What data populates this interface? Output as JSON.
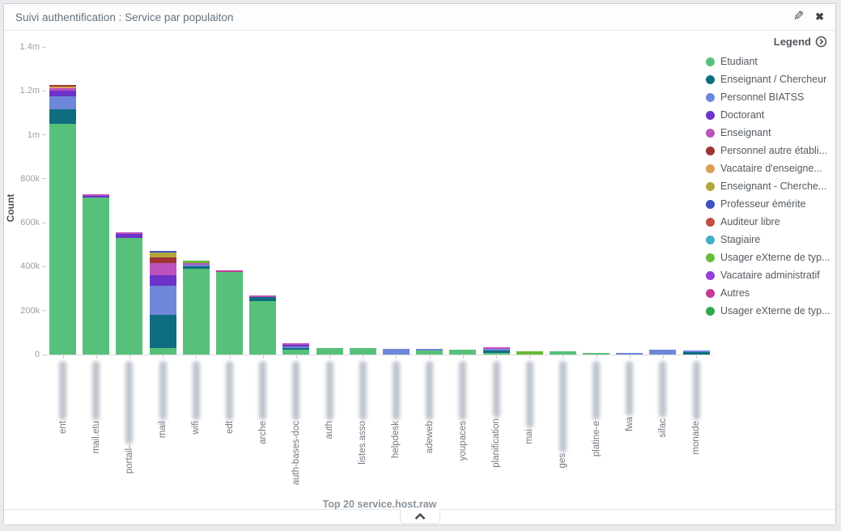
{
  "panel": {
    "title": "Suivi authentification : Service par populaiton",
    "edit_icon": "pencil",
    "close_icon": "x",
    "collapse_icon": "chevron-up"
  },
  "legend": {
    "header": "Legend",
    "items": [
      {
        "label": "Etudiant",
        "color": "#57c17b"
      },
      {
        "label": "Enseignant / Chercheur",
        "color": "#0e6e7f"
      },
      {
        "label": "Personnel BIATSS",
        "color": "#6f87d8"
      },
      {
        "label": "Doctorant",
        "color": "#6d33c9"
      },
      {
        "label": "Enseignant",
        "color": "#bc52bc"
      },
      {
        "label": "Personnel autre établi...",
        "color": "#9e3533"
      },
      {
        "label": "Vacataire d'enseigne...",
        "color": "#dca054"
      },
      {
        "label": "Enseignant - Cherche...",
        "color": "#b3a73c"
      },
      {
        "label": "Professeur émérite",
        "color": "#3f51c1"
      },
      {
        "label": "Auditeur libre",
        "color": "#c0503f"
      },
      {
        "label": "Stagiaire",
        "color": "#3fb0c4"
      },
      {
        "label": "Usager eXterne de typ...",
        "color": "#68bb35"
      },
      {
        "label": "Vacataire administratif",
        "color": "#9440d5"
      },
      {
        "label": "Autres",
        "color": "#c23a98"
      },
      {
        "label": "Usager eXterne de typ...",
        "color": "#2fa94c"
      }
    ]
  },
  "chart_data": {
    "type": "bar",
    "stacked": true,
    "ylabel": "Count",
    "xlabel": "Top 20 service.host.raw",
    "ymax": 1400000,
    "yticks": [
      {
        "label": "0",
        "value": 0
      },
      {
        "label": "200k",
        "value": 200000
      },
      {
        "label": "400k",
        "value": 400000
      },
      {
        "label": "600k",
        "value": 600000
      },
      {
        "label": "800k",
        "value": 800000
      },
      {
        "label": "1m",
        "value": 1000000
      },
      {
        "label": "1.2m",
        "value": 1200000
      },
      {
        "label": "1.4m",
        "value": 1400000
      }
    ],
    "categories": [
      {
        "label": "ent",
        "blur_len": 73
      },
      {
        "label": "mail.etu",
        "blur_len": 73
      },
      {
        "label": "portail-",
        "blur_len": 103
      },
      {
        "label": "mail",
        "blur_len": 73
      },
      {
        "label": "wifi",
        "blur_len": 73
      },
      {
        "label": "edt",
        "blur_len": 73
      },
      {
        "label": "arche",
        "blur_len": 73
      },
      {
        "label": "auth-bases-doc",
        "blur_len": 73
      },
      {
        "label": "auth",
        "blur_len": 73
      },
      {
        "label": "listes.asso",
        "blur_len": 73
      },
      {
        "label": "helpdesk",
        "blur_len": 73
      },
      {
        "label": "adeweb",
        "blur_len": 73
      },
      {
        "label": "youpaces",
        "blur_len": 73
      },
      {
        "label": "planification",
        "blur_len": 70
      },
      {
        "label": "mai",
        "blur_len": 83
      },
      {
        "label": "ges",
        "blur_len": 113
      },
      {
        "label": "platine-e",
        "blur_len": 73
      },
      {
        "label": "fwa",
        "blur_len": 68
      },
      {
        "label": "sifac",
        "blur_len": 70
      },
      {
        "label": "monade",
        "blur_len": 73
      }
    ],
    "bars": [
      {
        "segments": [
          {
            "i": 0,
            "v": 1050000
          },
          {
            "i": 1,
            "v": 68000
          },
          {
            "i": 2,
            "v": 56000
          },
          {
            "i": 3,
            "v": 26000
          },
          {
            "i": 4,
            "v": 11000
          },
          {
            "i": 6,
            "v": 8000
          },
          {
            "i": 5,
            "v": 8000
          }
        ]
      },
      {
        "segments": [
          {
            "i": 0,
            "v": 715000
          },
          {
            "i": 3,
            "v": 5000
          },
          {
            "i": 4,
            "v": 4000
          }
        ]
      },
      {
        "segments": [
          {
            "i": 0,
            "v": 530000
          },
          {
            "i": 3,
            "v": 18000
          },
          {
            "i": 4,
            "v": 3000
          }
        ]
      },
      {
        "segments": [
          {
            "i": 0,
            "v": 30000
          },
          {
            "i": 1,
            "v": 150000
          },
          {
            "i": 2,
            "v": 133000
          },
          {
            "i": 3,
            "v": 50000
          },
          {
            "i": 4,
            "v": 52000
          },
          {
            "i": 5,
            "v": 26000
          },
          {
            "i": 7,
            "v": 23000
          },
          {
            "i": 8,
            "v": 8000
          }
        ]
      },
      {
        "segments": [
          {
            "i": 0,
            "v": 392000
          },
          {
            "i": 1,
            "v": 8000
          },
          {
            "i": 2,
            "v": 6000
          },
          {
            "i": 4,
            "v": 7000
          },
          {
            "i": 11,
            "v": 12000
          }
        ]
      },
      {
        "segments": [
          {
            "i": 0,
            "v": 375000
          },
          {
            "i": 13,
            "v": 2000
          }
        ]
      },
      {
        "segments": [
          {
            "i": 0,
            "v": 242000
          },
          {
            "i": 1,
            "v": 20000
          },
          {
            "i": 4,
            "v": 6000
          }
        ]
      },
      {
        "segments": [
          {
            "i": 0,
            "v": 22000
          },
          {
            "i": 1,
            "v": 5000
          },
          {
            "i": 2,
            "v": 6000
          },
          {
            "i": 3,
            "v": 5000
          },
          {
            "i": 4,
            "v": 4000
          }
        ]
      },
      {
        "segments": [
          {
            "i": 0,
            "v": 30000
          }
        ]
      },
      {
        "segments": [
          {
            "i": 0,
            "v": 30000
          }
        ]
      },
      {
        "segments": [
          {
            "i": 2,
            "v": 26000
          }
        ]
      },
      {
        "segments": [
          {
            "i": 0,
            "v": 20000
          },
          {
            "i": 2,
            "v": 3000
          }
        ]
      },
      {
        "segments": [
          {
            "i": 0,
            "v": 24000
          }
        ]
      },
      {
        "segments": [
          {
            "i": 0,
            "v": 2000
          },
          {
            "i": 1,
            "v": 10000
          },
          {
            "i": 2,
            "v": 3000
          },
          {
            "i": 4,
            "v": 2000
          }
        ]
      },
      {
        "segments": [
          {
            "i": 11,
            "v": 16000
          }
        ]
      },
      {
        "segments": [
          {
            "i": 0,
            "v": 14000
          }
        ]
      },
      {
        "segments": [
          {
            "i": 0,
            "v": 7000
          }
        ]
      },
      {
        "segments": [
          {
            "i": 2,
            "v": 6000
          }
        ]
      },
      {
        "segments": [
          {
            "i": 2,
            "v": 24000
          }
        ]
      },
      {
        "segments": [
          {
            "i": 1,
            "v": 10000
          },
          {
            "i": 2,
            "v": 3000
          }
        ]
      }
    ]
  }
}
